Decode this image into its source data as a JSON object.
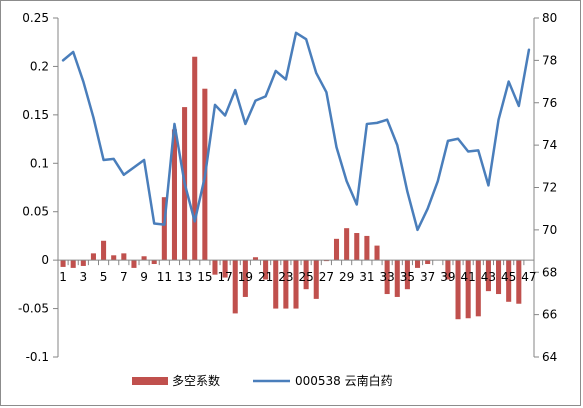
{
  "chart_data": {
    "type": "bar+line",
    "x": [
      1,
      2,
      3,
      4,
      5,
      6,
      7,
      8,
      9,
      10,
      11,
      12,
      13,
      14,
      15,
      16,
      17,
      18,
      19,
      20,
      21,
      22,
      23,
      24,
      25,
      26,
      27,
      28,
      29,
      30,
      31,
      32,
      33,
      34,
      35,
      36,
      37,
      38,
      39,
      40,
      41,
      42,
      43,
      44,
      45,
      46,
      47
    ],
    "x_tick_labels": [
      "1",
      "3",
      "5",
      "7",
      "9",
      "11",
      "13",
      "15",
      "17",
      "19",
      "21",
      "23",
      "25",
      "27",
      "29",
      "31",
      "33",
      "35",
      "37",
      "39",
      "41",
      "43",
      "45",
      "47"
    ],
    "series": [
      {
        "name": "多空系数",
        "type": "bar",
        "axis": "left",
        "color": "#c0504d",
        "values": [
          -0.007,
          -0.008,
          -0.006,
          0.007,
          0.02,
          0.005,
          0.007,
          -0.008,
          0.004,
          -0.004,
          0.065,
          0.135,
          0.158,
          0.21,
          0.177,
          -0.015,
          -0.018,
          -0.055,
          -0.038,
          0.003,
          -0.02,
          -0.05,
          -0.05,
          -0.05,
          -0.03,
          -0.04,
          -0.001,
          0.022,
          0.033,
          0.028,
          0.025,
          0.015,
          -0.035,
          -0.038,
          -0.03,
          -0.008,
          -0.004,
          0,
          -0.02,
          -0.061,
          -0.06,
          -0.058,
          -0.032,
          -0.035,
          -0.043,
          -0.045,
          0
        ]
      },
      {
        "name": "000538 云南白药",
        "type": "line",
        "axis": "right",
        "color": "#4a7ebb",
        "values": [
          78.0,
          78.4,
          77.0,
          75.3,
          73.3,
          73.35,
          72.6,
          72.95,
          73.3,
          70.3,
          70.25,
          75.0,
          72.2,
          70.4,
          72.5,
          75.9,
          75.4,
          76.6,
          75.0,
          76.1,
          76.3,
          77.5,
          77.1,
          79.3,
          79.0,
          77.4,
          76.5,
          73.9,
          72.3,
          71.2,
          75.0,
          75.05,
          75.2,
          74.0,
          71.8,
          70.0,
          71.0,
          72.3,
          74.2,
          74.3,
          73.7,
          73.75,
          72.1,
          75.2,
          77.0,
          75.85,
          78.5
        ]
      }
    ],
    "y_left": {
      "min": -0.1,
      "max": 0.25,
      "ticks": [
        "-0.1",
        "-0.05",
        "0",
        "0.05",
        "0.1",
        "0.15",
        "0.2",
        "0.25"
      ]
    },
    "y_right": {
      "min": 64,
      "max": 80,
      "ticks": [
        "64",
        "66",
        "68",
        "70",
        "72",
        "74",
        "76",
        "78",
        "80"
      ]
    },
    "grid": false,
    "legend_position": "bottom"
  }
}
